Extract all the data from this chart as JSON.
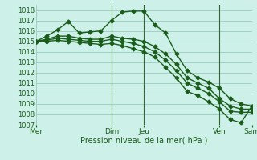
{
  "title": "",
  "xlabel": "Pression niveau de la mer( hPa )",
  "ylabel": "",
  "ylim": [
    1007,
    1018.5
  ],
  "yticks": [
    1007,
    1008,
    1009,
    1010,
    1011,
    1012,
    1013,
    1014,
    1015,
    1016,
    1017,
    1018
  ],
  "bg_color": "#cdf0e8",
  "grid_color": "#99ccbb",
  "line_color": "#1a5c1a",
  "series": [
    {
      "x": [
        0,
        1,
        2,
        3,
        4,
        5,
        6,
        7,
        8,
        9,
        10,
        11,
        12,
        13,
        14,
        15,
        16,
        17,
        18,
        19,
        20
      ],
      "y": [
        1015.0,
        1015.5,
        1016.1,
        1016.9,
        1015.8,
        1015.9,
        1016.0,
        1017.0,
        1017.8,
        1017.9,
        1017.9,
        1016.6,
        1015.8,
        1013.8,
        1012.2,
        1011.5,
        1011.1,
        1010.5,
        1009.5,
        1009.0,
        1008.8
      ]
    },
    {
      "x": [
        0,
        1,
        2,
        3,
        4,
        5,
        6,
        7,
        8,
        9,
        10,
        11,
        12,
        13,
        14,
        15,
        16,
        17,
        18,
        19,
        20
      ],
      "y": [
        1015.0,
        1015.2,
        1015.5,
        1015.5,
        1015.3,
        1015.2,
        1015.2,
        1015.5,
        1015.3,
        1015.2,
        1015.0,
        1014.5,
        1013.8,
        1012.8,
        1011.5,
        1011.0,
        1010.5,
        1009.5,
        1008.8,
        1008.5,
        1008.5
      ]
    },
    {
      "x": [
        0,
        1,
        2,
        3,
        4,
        5,
        6,
        7,
        8,
        9,
        10,
        11,
        12,
        13,
        14,
        15,
        16,
        17,
        18,
        19,
        20
      ],
      "y": [
        1015.0,
        1015.1,
        1015.3,
        1015.2,
        1015.1,
        1015.0,
        1015.0,
        1015.2,
        1015.0,
        1014.8,
        1014.5,
        1014.0,
        1013.2,
        1012.2,
        1011.0,
        1010.5,
        1010.0,
        1009.2,
        1008.3,
        1008.2,
        1008.2
      ]
    },
    {
      "x": [
        0,
        1,
        2,
        3,
        4,
        5,
        6,
        7,
        8,
        9,
        10,
        11,
        12,
        13,
        14,
        15,
        16,
        17,
        18,
        19,
        20
      ],
      "y": [
        1015.0,
        1015.0,
        1015.1,
        1015.0,
        1014.9,
        1014.8,
        1014.7,
        1014.8,
        1014.6,
        1014.3,
        1014.0,
        1013.5,
        1012.5,
        1011.5,
        1010.2,
        1009.8,
        1009.2,
        1008.5,
        1007.5,
        1007.2,
        1008.8
      ]
    }
  ],
  "xtick_positions": [
    0,
    7,
    10,
    17,
    20
  ],
  "xtick_labels": [
    "Mer",
    "Dim",
    "Jeu",
    "Ven",
    "Sam"
  ],
  "vline_x": [
    7,
    10,
    17
  ],
  "marker": "D",
  "markersize": 2.5,
  "linewidth": 1.0
}
